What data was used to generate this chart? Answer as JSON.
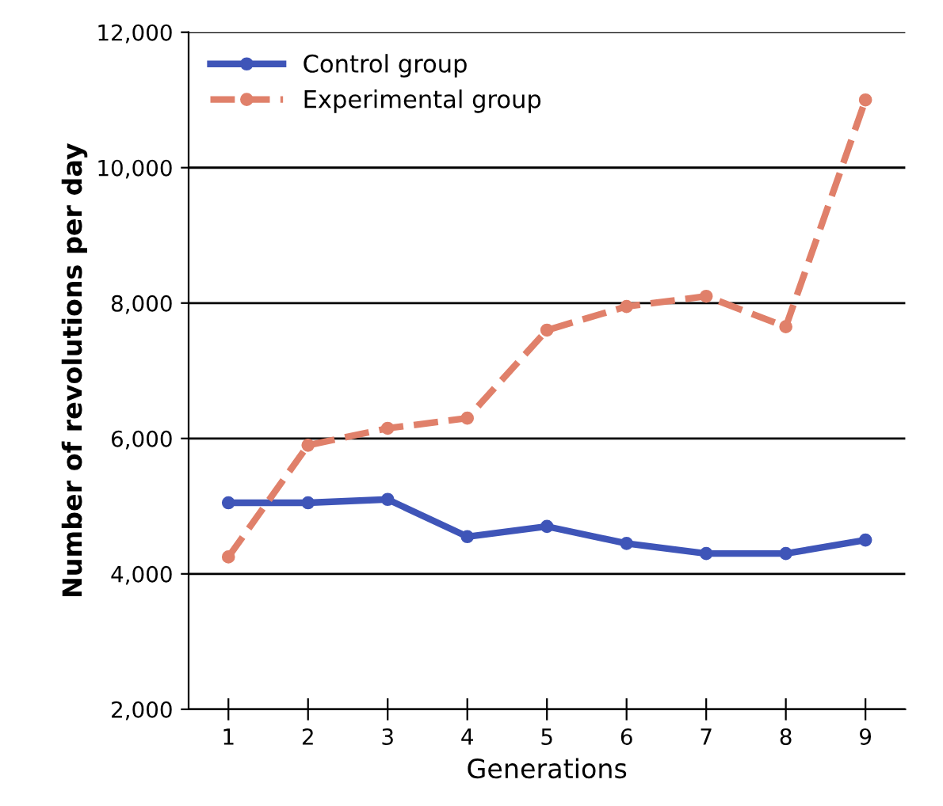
{
  "chart_data": {
    "type": "line",
    "xlabel": "Generations",
    "ylabel": "Number of revolutions per day",
    "x": [
      1,
      2,
      3,
      4,
      5,
      6,
      7,
      8,
      9
    ],
    "xlim": [
      0.5,
      9.5
    ],
    "xticks": [
      1,
      2,
      3,
      4,
      5,
      6,
      7,
      8,
      9
    ],
    "ylim": [
      2000,
      12000
    ],
    "yticks": [
      {
        "value": 2000,
        "label": "2,000"
      },
      {
        "value": 4000,
        "label": "4,000"
      },
      {
        "value": 6000,
        "label": "6,000"
      },
      {
        "value": 8000,
        "label": "8,000"
      },
      {
        "value": 10000,
        "label": "10,000"
      },
      {
        "value": 12000,
        "label": "12,000"
      }
    ],
    "grid": "y",
    "legend": "top left",
    "marker": "circle",
    "series": [
      {
        "name": "Control group",
        "color": "#3f55b8",
        "line_style": "solid",
        "values": [
          5050,
          5050,
          5100,
          4550,
          4700,
          4450,
          4300,
          4300,
          4500
        ]
      },
      {
        "name": "Experimental group",
        "color": "#e0806a",
        "line_style": "dashed",
        "values": [
          4250,
          5900,
          6150,
          6300,
          7600,
          7950,
          8100,
          7650,
          11000
        ]
      }
    ]
  }
}
